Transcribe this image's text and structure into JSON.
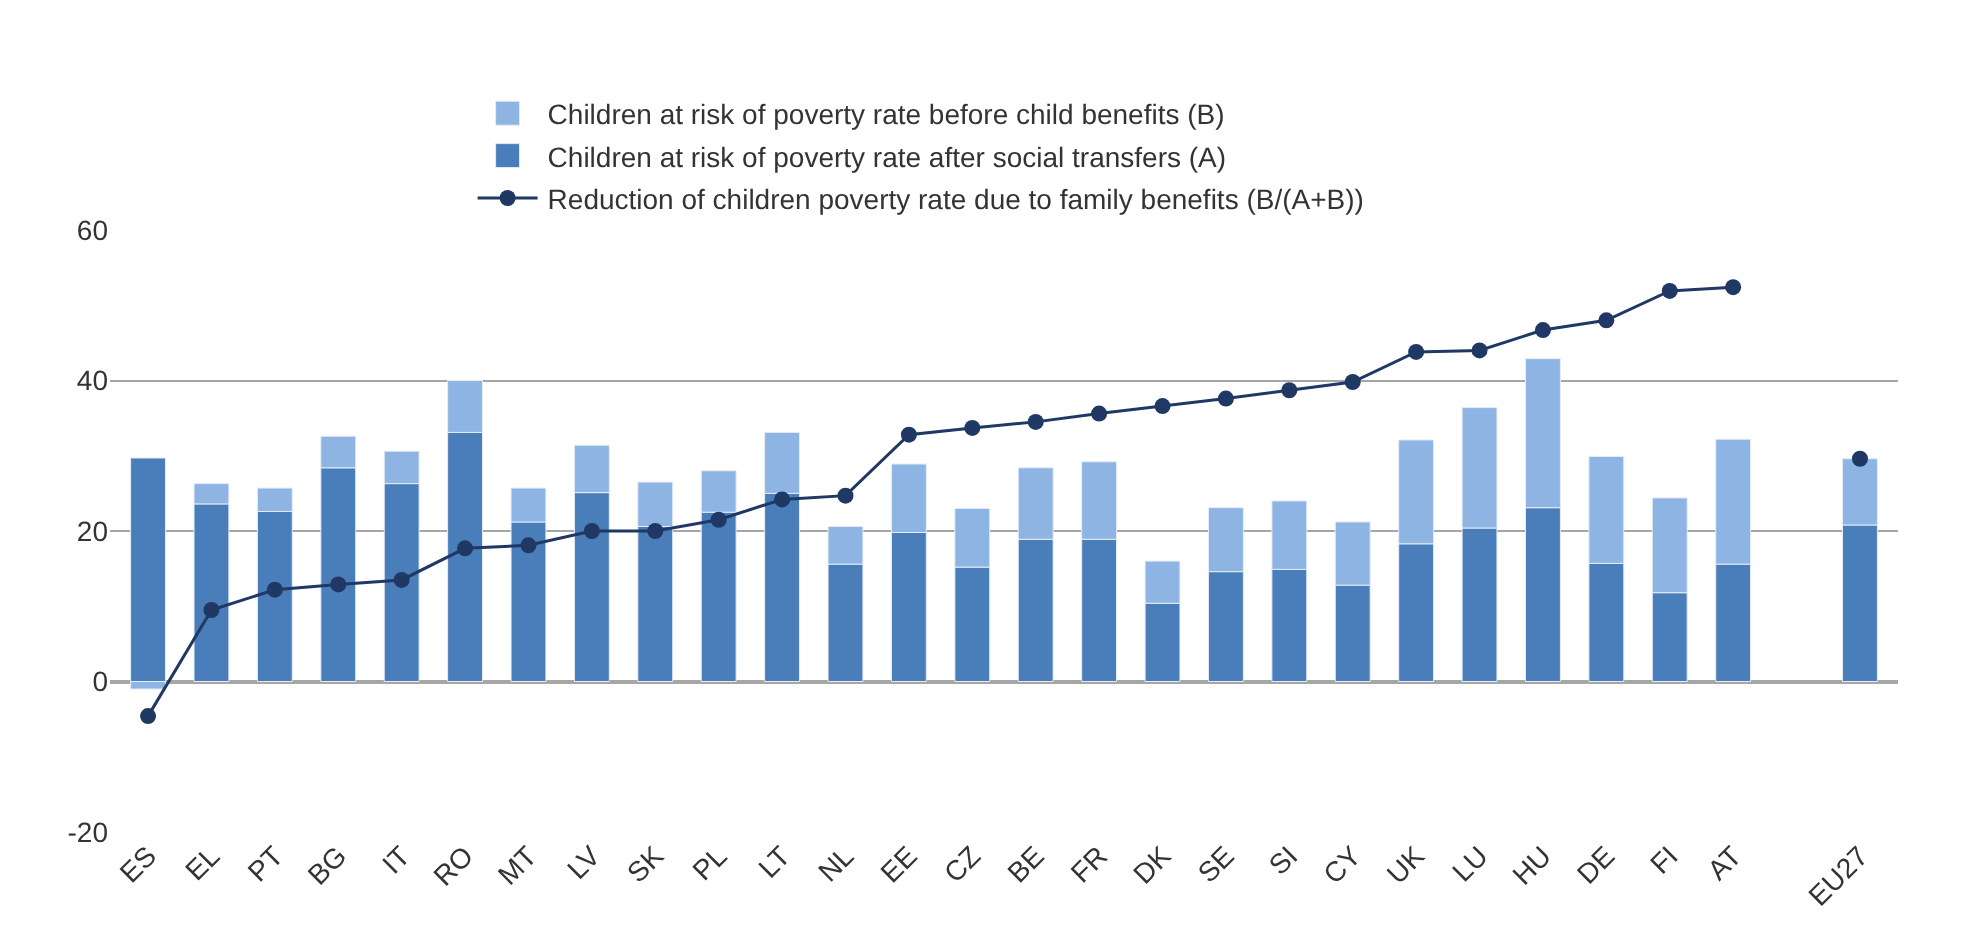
{
  "chart_data": {
    "type": "bar",
    "stacked": true,
    "categories": [
      "ES",
      "EL",
      "PT",
      "BG",
      "IT",
      "RO",
      "MT",
      "LV",
      "SK",
      "PL",
      "LT",
      "NL",
      "EE",
      "CZ",
      "BE",
      "FR",
      "DK",
      "SE",
      "SI",
      "CY",
      "UK",
      "LU",
      "HU",
      "DE",
      "FI",
      "AT",
      null,
      "EU27"
    ],
    "series": [
      {
        "name": "Children at risk of poverty rate after social transfers (A)",
        "color": "#4a7ebb",
        "values": [
          29.7,
          23.6,
          22.6,
          28.4,
          26.3,
          33.1,
          21.2,
          25.1,
          20.6,
          22.5,
          25.0,
          15.6,
          19.8,
          15.2,
          18.9,
          18.9,
          10.4,
          14.6,
          14.9,
          12.8,
          18.3,
          20.4,
          23.1,
          15.7,
          11.8,
          15.6,
          null,
          20.8
        ]
      },
      {
        "name": "Children at risk of poverty rate before child benefits (B)",
        "color": "#8db4e2",
        "values": [
          -1.0,
          2.7,
          3.1,
          4.2,
          4.3,
          6.9,
          4.5,
          6.3,
          5.9,
          5.5,
          8.1,
          5.0,
          9.1,
          7.8,
          9.5,
          10.3,
          5.6,
          8.5,
          9.1,
          8.4,
          13.8,
          16.0,
          19.8,
          14.2,
          12.6,
          16.6,
          null,
          8.8
        ]
      },
      {
        "name": "Reduction of children poverty rate due to family benefits (B/(A+B))",
        "type": "line",
        "color": "#1f3864",
        "marker": "circle",
        "values": [
          -4.6,
          9.5,
          12.2,
          12.9,
          13.5,
          17.7,
          18.1,
          20.0,
          20.0,
          21.5,
          24.2,
          24.7,
          32.8,
          33.7,
          34.5,
          35.6,
          36.6,
          37.6,
          38.7,
          39.8,
          43.8,
          44.0,
          46.7,
          48.0,
          51.9,
          52.4,
          null,
          29.6
        ]
      }
    ],
    "ylim": [
      -20,
      60
    ],
    "yticks": [
      -20,
      0,
      20,
      40,
      60
    ],
    "grid": "y",
    "legend": "top"
  }
}
